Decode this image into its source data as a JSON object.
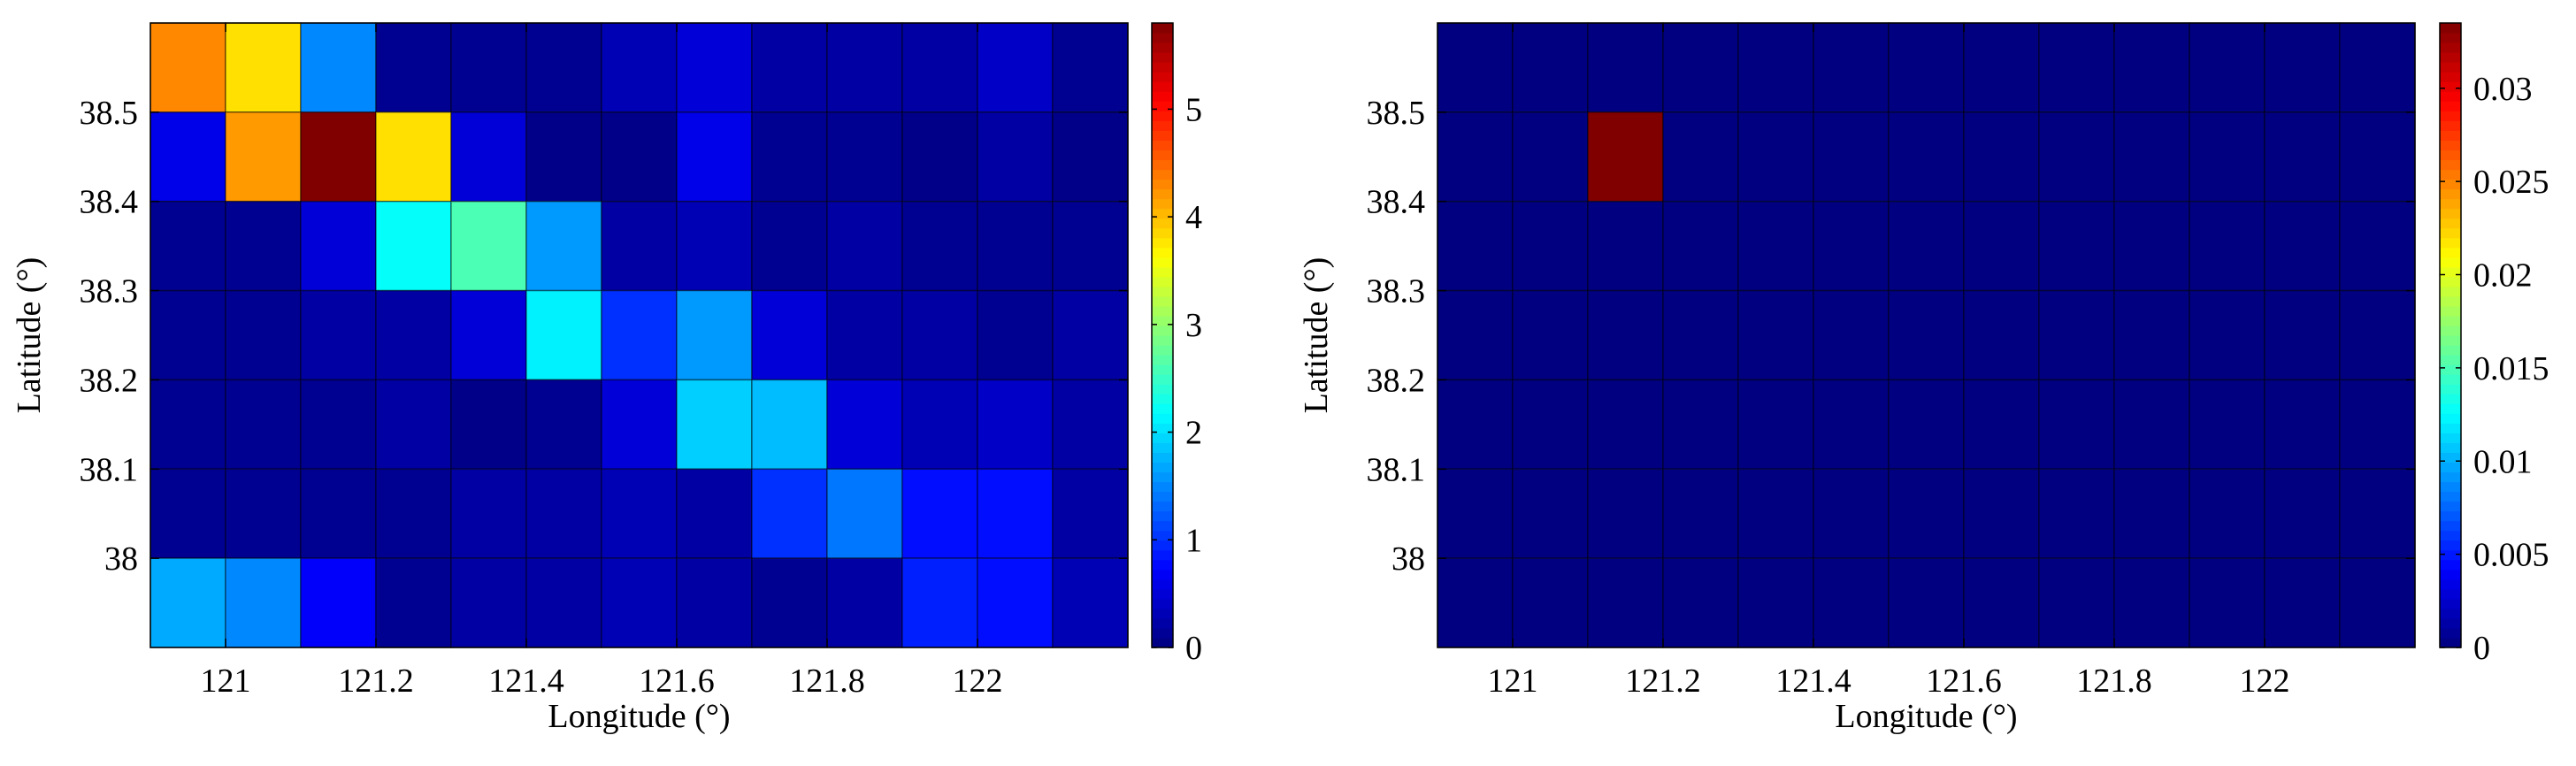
{
  "chart_data": [
    {
      "type": "heatmap",
      "xlabel": "Longitude (°)",
      "ylabel": "Latitude (°)",
      "xticks": [
        121,
        121.2,
        121.4,
        121.6,
        121.8,
        122
      ],
      "xtick_labels": [
        "121",
        "121.2",
        "121.4",
        "121.6",
        "121.8",
        "122"
      ],
      "yticks": [
        38,
        38.1,
        38.2,
        38.3,
        38.4,
        38.5
      ],
      "ytick_labels": [
        "38",
        "38.1",
        "38.2",
        "38.3",
        "38.4",
        "38.5"
      ],
      "xlim": [
        120.9,
        122.2
      ],
      "ylim": [
        37.9,
        38.6
      ],
      "x_edges": [
        120.9,
        121.0,
        121.1,
        121.2,
        121.3,
        121.4,
        121.5,
        121.6,
        121.7,
        121.8,
        121.9,
        122.0,
        122.1,
        122.2
      ],
      "y_edges_top_to_bottom": [
        38.6,
        38.5,
        38.4,
        38.3,
        38.2,
        38.1,
        38.0,
        37.9
      ],
      "colormap": "jet",
      "clim": [
        0,
        5.8
      ],
      "colorbar_ticks": [
        0,
        1,
        2,
        3,
        4,
        5
      ],
      "colorbar_tick_labels": [
        "0",
        "1",
        "2",
        "3",
        "4",
        "5"
      ],
      "grid": false,
      "values": [
        [
          4.3,
          3.8,
          1.5,
          0.1,
          0.1,
          0.1,
          0.3,
          0.5,
          0.2,
          0.2,
          0.2,
          0.4,
          0.1
        ],
        [
          0.6,
          4.2,
          5.8,
          3.8,
          0.5,
          0.05,
          0.05,
          0.6,
          0.1,
          0.1,
          0.05,
          0.2,
          0.05
        ],
        [
          0.1,
          0.1,
          0.5,
          2.2,
          2.6,
          1.6,
          0.2,
          0.3,
          0.1,
          0.2,
          0.1,
          0.1,
          0.1
        ],
        [
          0.1,
          0.1,
          0.2,
          0.2,
          0.5,
          2.1,
          1.0,
          1.6,
          0.5,
          0.2,
          0.2,
          0.1,
          0.2
        ],
        [
          0.1,
          0.1,
          0.1,
          0.2,
          0.05,
          0.1,
          0.5,
          1.9,
          1.8,
          0.5,
          0.3,
          0.4,
          0.2
        ],
        [
          0.1,
          0.1,
          0.1,
          0.1,
          0.2,
          0.2,
          0.3,
          0.2,
          1.0,
          1.4,
          0.8,
          0.8,
          0.2
        ],
        [
          1.7,
          1.5,
          0.7,
          0.1,
          0.2,
          0.2,
          0.3,
          0.2,
          0.1,
          0.2,
          0.9,
          0.8,
          0.3
        ]
      ]
    },
    {
      "type": "heatmap",
      "xlabel": "Longitude (°)",
      "ylabel": "Latitude (°)",
      "xticks": [
        121,
        121.2,
        121.4,
        121.6,
        121.8,
        122
      ],
      "xtick_labels": [
        "121",
        "121.2",
        "121.4",
        "121.6",
        "121.8",
        "122"
      ],
      "yticks": [
        38,
        38.1,
        38.2,
        38.3,
        38.4,
        38.5
      ],
      "ytick_labels": [
        "38",
        "38.1",
        "38.2",
        "38.3",
        "38.4",
        "38.5"
      ],
      "xlim": [
        120.9,
        122.2
      ],
      "ylim": [
        37.9,
        38.6
      ],
      "x_edges": [
        120.9,
        121.0,
        121.1,
        121.2,
        121.3,
        121.4,
        121.5,
        121.6,
        121.7,
        121.8,
        121.9,
        122.0,
        122.1,
        122.2
      ],
      "y_edges_top_to_bottom": [
        38.6,
        38.5,
        38.4,
        38.3,
        38.2,
        38.1,
        38.0,
        37.9
      ],
      "colormap": "jet",
      "clim": [
        0,
        0.0335
      ],
      "colorbar_ticks": [
        0,
        0.005,
        0.01,
        0.015,
        0.02,
        0.025,
        0.03
      ],
      "colorbar_tick_labels": [
        "0",
        "0.005",
        "0.01",
        "0.015",
        "0.02",
        "0.025",
        "0.03"
      ],
      "grid": false,
      "values": [
        [
          0,
          0,
          0,
          0,
          0,
          0,
          0,
          0,
          0,
          0,
          0,
          0,
          0
        ],
        [
          0,
          0,
          0.0335,
          0,
          0,
          0,
          0,
          0,
          0,
          0,
          0,
          0,
          0
        ],
        [
          0,
          0,
          0,
          0,
          0,
          0,
          0,
          0,
          0,
          0,
          0,
          0,
          0
        ],
        [
          0,
          0,
          0,
          0,
          0,
          0,
          0,
          0,
          0,
          0,
          0,
          0,
          0
        ],
        [
          0,
          0,
          0,
          0,
          0,
          0,
          0,
          0,
          0,
          0,
          0,
          0,
          0
        ],
        [
          0,
          0,
          0,
          0,
          0,
          0,
          0,
          0,
          0,
          0,
          0,
          0,
          0
        ],
        [
          0,
          0,
          0,
          0,
          0,
          0,
          0,
          0,
          0,
          0,
          0,
          0,
          0
        ]
      ]
    }
  ]
}
